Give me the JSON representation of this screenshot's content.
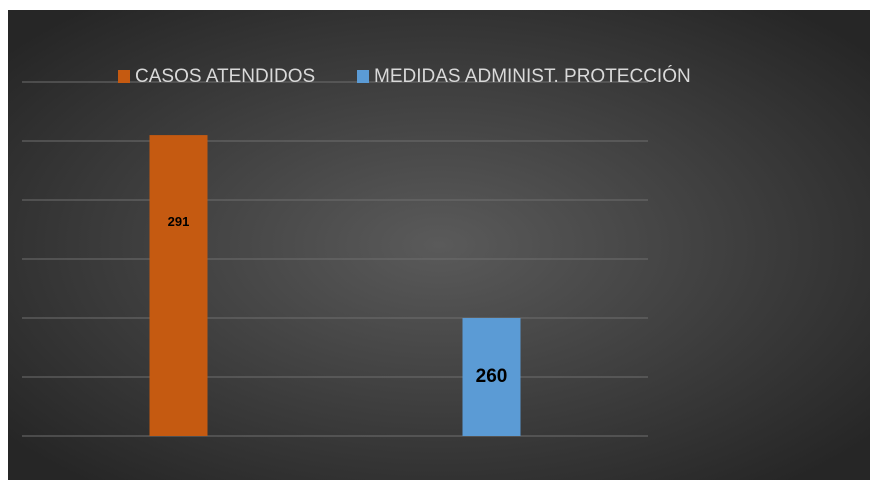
{
  "chart_data": {
    "type": "bar",
    "categories": [
      null
    ],
    "series": [
      {
        "name": "CASOS ATENDIDOS",
        "color": "#c55a11",
        "values": [
          291
        ]
      },
      {
        "name": "MEDIDAS ADMINIST. PROTECCIÓN",
        "color": "#5b9bd5",
        "values": [
          260
        ]
      }
    ],
    "ylim": [
      240,
      300
    ],
    "yticks": [
      240,
      250,
      260,
      270,
      280,
      290,
      300
    ],
    "grid": true,
    "legend": "top"
  }
}
